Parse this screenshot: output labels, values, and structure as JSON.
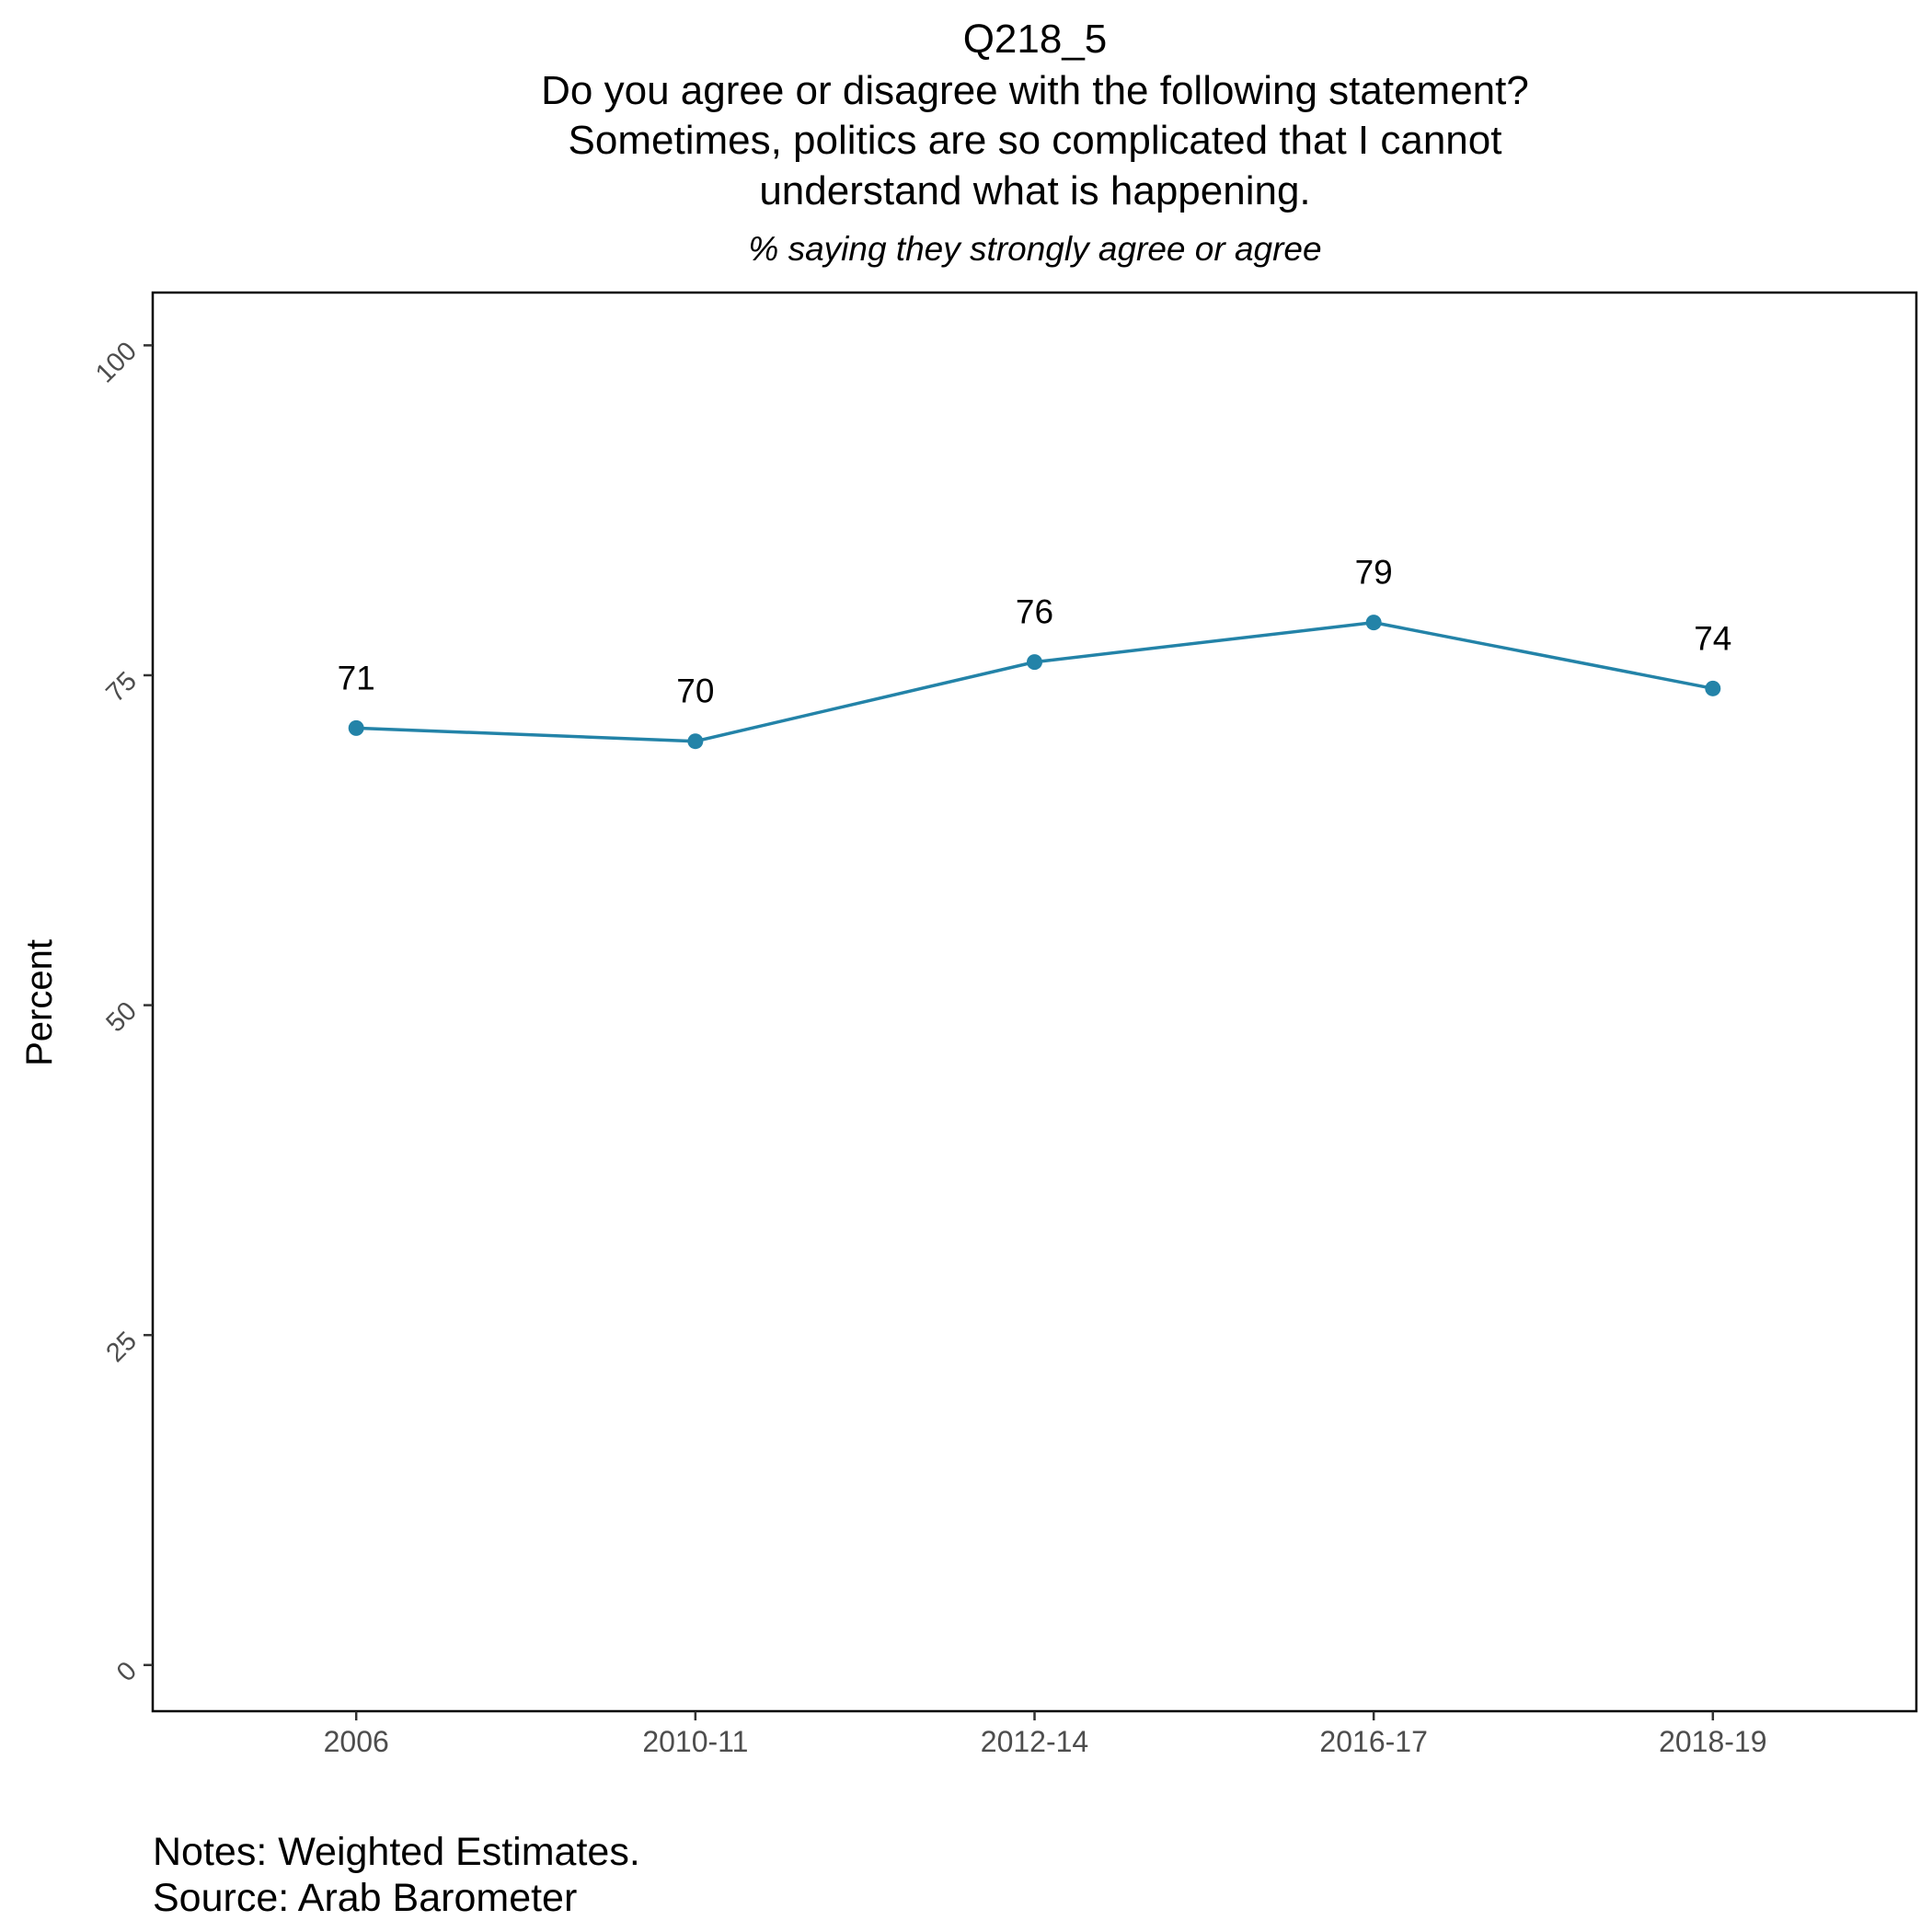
{
  "chart_data": {
    "type": "line",
    "title_lines": [
      "Q218_5",
      "Do you agree or disagree with the following statement?",
      "Sometimes, politics are so complicated that I cannot",
      "understand what is happening."
    ],
    "subtitle": "% saying they strongly agree or agree",
    "xlabel": "",
    "ylabel": "Percent",
    "categories": [
      "2006",
      "2010-11",
      "2012-14",
      "2016-17",
      "2018-19"
    ],
    "series": [
      {
        "values": [
          71,
          70,
          76,
          79,
          74
        ],
        "labels": [
          "71",
          "70",
          "76",
          "79",
          "74"
        ]
      }
    ],
    "ylim": [
      -3.5,
      104
    ],
    "yticks": [
      0,
      25,
      50,
      75,
      100
    ],
    "ytick_labels": [
      "0",
      "25",
      "50",
      "75",
      "100"
    ],
    "grid": false,
    "legend": "none",
    "line_color": "#2383a8",
    "caption_lines": [
      "Notes: Weighted Estimates.",
      "Source: Arab Barometer"
    ]
  }
}
